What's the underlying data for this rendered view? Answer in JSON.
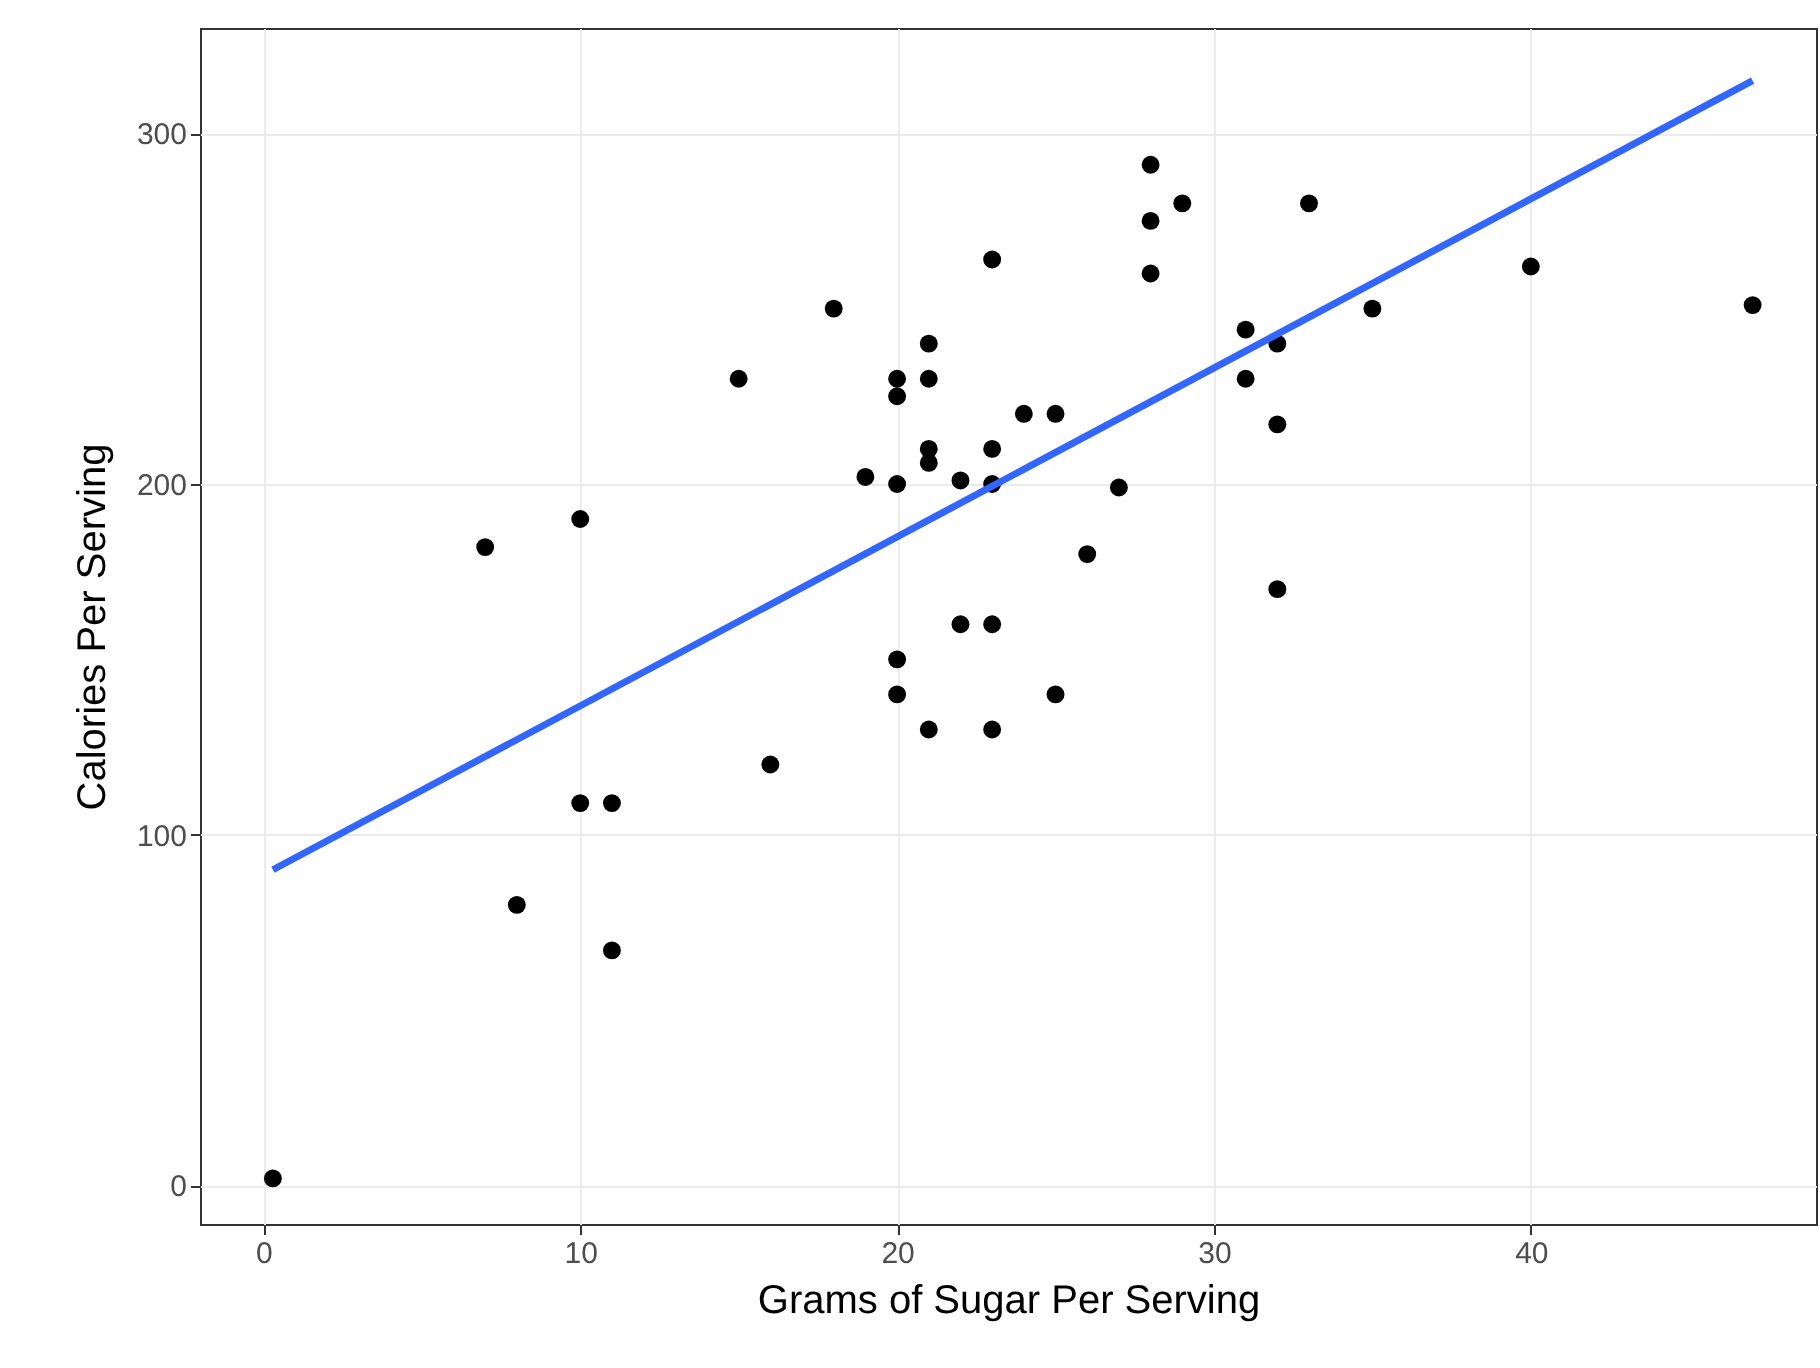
{
  "chart_data": {
    "type": "scatter",
    "xlabel": "Grams of Sugar Per Serving",
    "ylabel": "Calories Per Serving",
    "xlim": [
      -2,
      49
    ],
    "ylim": [
      -11,
      330
    ],
    "xticks": [
      0,
      10,
      20,
      30,
      40
    ],
    "yticks": [
      0,
      100,
      200,
      300
    ],
    "grid": true,
    "series": [
      {
        "color": "#000000",
        "marker": "circle",
        "x": [
          0.3,
          7,
          8,
          10,
          10,
          11,
          11,
          15,
          16,
          18,
          19,
          20,
          20,
          20,
          20,
          20,
          21,
          21,
          21,
          21,
          21,
          22,
          22,
          23,
          23,
          23,
          23,
          23,
          24,
          25,
          25,
          26,
          27,
          28,
          28,
          28,
          29,
          31,
          31,
          32,
          32,
          32,
          33,
          35,
          40,
          47
        ],
        "values": [
          2,
          182,
          80,
          190,
          109,
          109,
          67,
          230,
          120,
          250,
          202,
          200,
          230,
          225,
          150,
          140,
          240,
          230,
          210,
          206,
          130,
          201,
          160,
          264,
          210,
          200,
          160,
          130,
          220,
          220,
          140,
          180,
          199,
          291,
          275,
          260,
          280,
          244,
          230,
          240,
          217,
          170,
          280,
          250,
          262,
          251
        ]
      },
      {
        "type": "line",
        "marker": "none",
        "color": "#3366ff",
        "x": [
          0.3,
          47
        ],
        "values": [
          90,
          315
        ]
      }
    ]
  }
}
